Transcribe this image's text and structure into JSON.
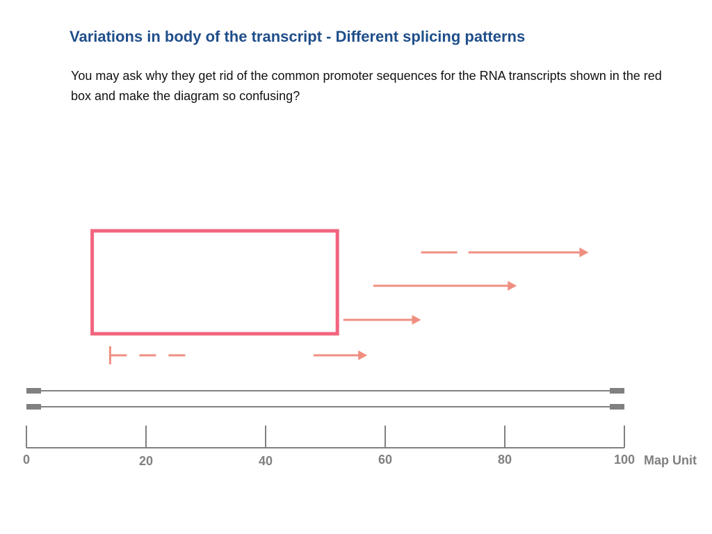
{
  "slide": {
    "title": "Variations in body of the transcript - Different splicing patterns",
    "body": "You may ask why they get rid of the common promoter sequences for the RNA transcripts shown in the red box and make the diagram so confusing?"
  },
  "colors": {
    "title": "#1f4e8a",
    "highlight_box": "#f2647e",
    "transcript": "#ef8f80",
    "scale": "#808080"
  },
  "map_scale": {
    "unit_label": "Map Unit",
    "min": 0,
    "max": 100,
    "ticks": [
      {
        "value": 0,
        "label": "0"
      },
      {
        "value": 20,
        "label": "20"
      },
      {
        "value": 40,
        "label": "40"
      },
      {
        "value": 60,
        "label": "60"
      },
      {
        "value": 80,
        "label": "80"
      },
      {
        "value": 100,
        "label": "100"
      }
    ]
  },
  "highlight_box": {
    "start": 11,
    "end": 52
  },
  "transcripts": [
    {
      "type": "dashed-promoter",
      "start": 14,
      "end": 27
    },
    {
      "type": "arrow",
      "start": 48,
      "end": 57
    },
    {
      "type": "arrow",
      "start": 53,
      "end": 66
    },
    {
      "type": "arrow",
      "start": 58,
      "end": 82
    },
    {
      "type": "dashed-arrow",
      "start": 66,
      "end": 94
    }
  ]
}
